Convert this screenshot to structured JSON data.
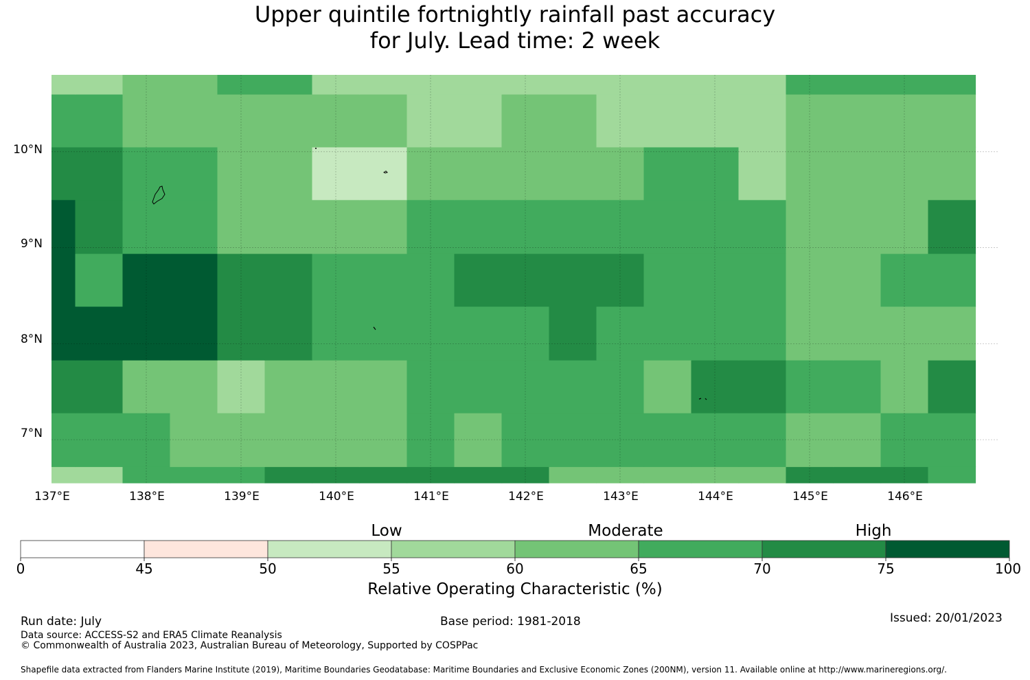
{
  "title": {
    "line1": "Upper quintile fortnightly rainfall past accuracy",
    "line2": "for July. Lead time: 2 week"
  },
  "map": {
    "lon_ticks": [
      "137°E",
      "138°E",
      "139°E",
      "140°E",
      "141°E",
      "142°E",
      "143°E",
      "144°E",
      "145°E",
      "146°E"
    ],
    "lat_ticks": [
      "10°N",
      "9°N",
      "8°N",
      "7°N"
    ],
    "lon_range": [
      137.0,
      147.0
    ],
    "lat_range": [
      6.55,
      10.8
    ],
    "gridlines": true,
    "color_classes": [
      "#ffffff",
      "#fee6dd",
      "#c7e9c0",
      "#a1d99b",
      "#74c476",
      "#41ab5d",
      "#238b45",
      "#005a32"
    ],
    "grid_cells": [
      [
        3,
        3,
        5,
        5,
        5,
        6,
        6,
        6,
        6,
        6,
        6,
        4,
        4,
        4,
        4,
        4,
        6,
        6,
        6,
        5
      ],
      [
        5,
        5,
        5,
        4,
        4,
        4,
        4,
        4,
        5,
        4,
        5,
        5,
        5,
        5,
        5,
        5,
        4,
        4,
        5,
        5
      ],
      [
        6,
        6,
        4,
        4,
        3,
        4,
        4,
        4,
        5,
        5,
        5,
        5,
        5,
        4,
        6,
        6,
        5,
        5,
        4,
        6
      ],
      [
        7,
        7,
        7,
        7,
        6,
        6,
        5,
        5,
        5,
        5,
        5,
        6,
        5,
        5,
        5,
        5,
        4,
        4,
        4,
        4
      ],
      [
        7,
        5,
        7,
        7,
        6,
        6,
        5,
        5,
        5,
        6,
        6,
        6,
        6,
        5,
        5,
        5,
        4,
        4,
        5,
        5
      ],
      [
        7,
        6,
        5,
        5,
        4,
        4,
        4,
        4,
        5,
        5,
        5,
        5,
        5,
        5,
        5,
        5,
        4,
        4,
        4,
        6
      ],
      [
        6,
        6,
        5,
        5,
        4,
        4,
        2,
        2,
        4,
        4,
        4,
        4,
        4,
        5,
        5,
        3,
        4,
        4,
        4,
        4
      ],
      [
        5,
        5,
        4,
        4,
        4,
        4,
        4,
        4,
        3,
        3,
        4,
        4,
        3,
        3,
        3,
        3,
        4,
        4,
        4,
        4
      ],
      [
        3,
        3,
        4,
        4,
        5,
        5,
        3,
        3,
        3,
        3,
        3,
        3,
        3,
        3,
        3,
        3,
        5,
        5,
        5,
        5
      ]
    ],
    "grid_row_bounds_lat": [
      6.55,
      6.72,
      7.28,
      7.83,
      8.39,
      8.94,
      9.5,
      10.05,
      10.6,
      10.8
    ],
    "grid_cell_width_deg": 0.5
  },
  "categories": [
    "Low",
    "Moderate",
    "High"
  ],
  "colorbar": {
    "ticks": [
      "0",
      "45",
      "50",
      "55",
      "60",
      "65",
      "70",
      "75",
      "100"
    ],
    "title": "Relative Operating Characteristic (%)"
  },
  "footer": {
    "run_date": "Run date: July",
    "base_period": "Base period: 1981-2018",
    "issued": "Issued: 20/01/2023",
    "data_source": "Data source: ACCESS-S2 and ERA5 Climate Reanalysis",
    "copyright": "© Commonwealth of Australia 2023, Australian Bureau of Meteorology, Supported by COSPPac",
    "shapefile": "Shapefile data extracted from Flanders Marine Institute (2019), Maritime Boundaries Geodatabase: Maritime Boundaries and Exclusive Economic Zones (200NM), version 11. Available online at http://www.marineregions.org/."
  }
}
